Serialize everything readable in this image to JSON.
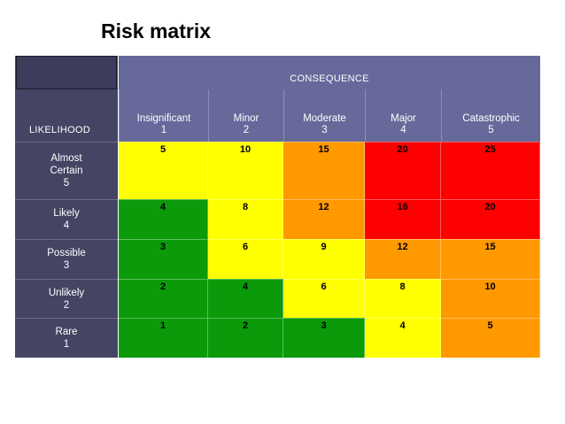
{
  "title": "Risk matrix",
  "consequence_label": "CONSEQUENCE",
  "likelihood_label": "LIKELIHOOD",
  "columns": [
    {
      "name": "Insignificant",
      "num": "1"
    },
    {
      "name": "Minor",
      "num": "2"
    },
    {
      "name": "Moderate",
      "num": "3"
    },
    {
      "name": "Major",
      "num": "4"
    },
    {
      "name": "Catastrophic",
      "num": "5"
    }
  ],
  "rows": [
    {
      "name": "Almost Certain",
      "num": "5",
      "values": [
        "5",
        "10",
        "15",
        "20",
        "25"
      ],
      "levels": [
        "yellow",
        "yellow",
        "orange",
        "red",
        "red"
      ]
    },
    {
      "name": "Likely",
      "num": "4",
      "values": [
        "4",
        "8",
        "12",
        "16",
        "20"
      ],
      "levels": [
        "green",
        "yellow",
        "orange",
        "red",
        "red"
      ]
    },
    {
      "name": "Possible",
      "num": "3",
      "values": [
        "3",
        "6",
        "9",
        "12",
        "15"
      ],
      "levels": [
        "green",
        "yellow",
        "yellow",
        "orange",
        "orange"
      ]
    },
    {
      "name": "Unlikely",
      "num": "2",
      "values": [
        "2",
        "4",
        "6",
        "8",
        "10"
      ],
      "levels": [
        "green",
        "green",
        "yellow",
        "yellow",
        "orange"
      ]
    },
    {
      "name": "Rare",
      "num": "1",
      "values": [
        "1",
        "2",
        "3",
        "4",
        "5"
      ],
      "levels": [
        "green",
        "green",
        "green",
        "yellow",
        "orange"
      ]
    }
  ],
  "colors": {
    "green": "#0a9a0a",
    "yellow": "#ffff00",
    "orange": "#ff9900",
    "red": "#ff0000"
  }
}
